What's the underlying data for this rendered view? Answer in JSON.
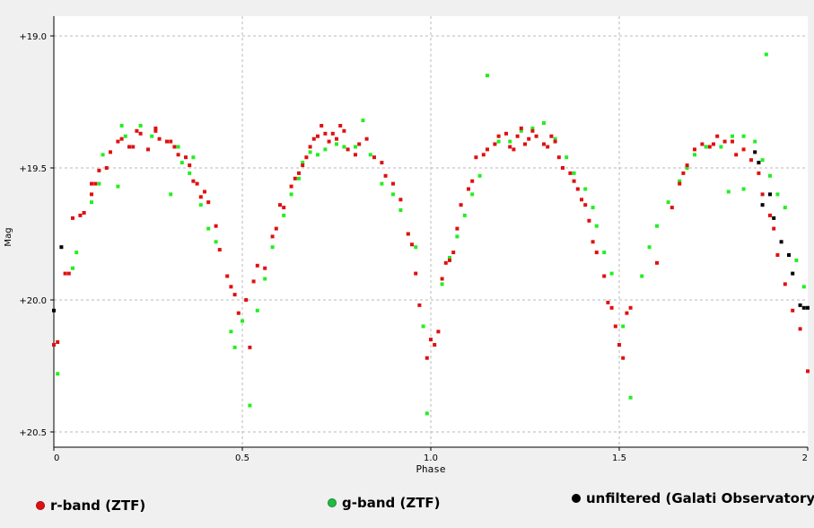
{
  "colors": {
    "r_band": "#e01010",
    "g_band": "#22ee22",
    "unfiltered": "#000000",
    "grid": "#b8b8b8",
    "plot_bg": "#ffffff",
    "window_bg": "#f0f0f0"
  },
  "chart_data": {
    "type": "scatter",
    "xlabel": "Phase",
    "ylabel": "Mag",
    "xlim": [
      0,
      2
    ],
    "ylim": [
      20.5,
      19.0
    ],
    "y_inverted": true,
    "grid": true,
    "x_ticks": [
      0,
      0.5,
      1.0,
      1.5,
      2
    ],
    "x_tick_labels": [
      "0",
      "0.5",
      "1.0",
      "1.5",
      "2"
    ],
    "y_ticks": [
      19.0,
      19.5,
      20.0,
      20.5
    ],
    "y_tick_labels": [
      "+19.0",
      "+19.5",
      "+20.0",
      "+20.5"
    ],
    "legend_position": "bottom",
    "series": [
      {
        "name": "r-band (ZTF)",
        "color_key": "r_band",
        "points": [
          [
            0.0,
            20.17
          ],
          [
            0.01,
            20.16
          ],
          [
            0.03,
            19.9
          ],
          [
            0.04,
            19.9
          ],
          [
            0.05,
            19.69
          ],
          [
            0.07,
            19.68
          ],
          [
            0.08,
            19.67
          ],
          [
            0.1,
            19.6
          ],
          [
            0.1,
            19.56
          ],
          [
            0.11,
            19.56
          ],
          [
            0.12,
            19.51
          ],
          [
            0.14,
            19.5
          ],
          [
            0.15,
            19.44
          ],
          [
            0.17,
            19.4
          ],
          [
            0.18,
            19.39
          ],
          [
            0.2,
            19.42
          ],
          [
            0.21,
            19.42
          ],
          [
            0.22,
            19.36
          ],
          [
            0.23,
            19.37
          ],
          [
            0.25,
            19.43
          ],
          [
            0.27,
            19.36
          ],
          [
            0.27,
            19.35
          ],
          [
            0.28,
            19.39
          ],
          [
            0.3,
            19.4
          ],
          [
            0.31,
            19.4
          ],
          [
            0.32,
            19.42
          ],
          [
            0.33,
            19.45
          ],
          [
            0.35,
            19.46
          ],
          [
            0.36,
            19.49
          ],
          [
            0.37,
            19.55
          ],
          [
            0.38,
            19.56
          ],
          [
            0.39,
            19.61
          ],
          [
            0.4,
            19.59
          ],
          [
            0.41,
            19.63
          ],
          [
            0.43,
            19.72
          ],
          [
            0.44,
            19.81
          ],
          [
            0.46,
            19.91
          ],
          [
            0.47,
            19.95
          ],
          [
            0.48,
            19.98
          ],
          [
            0.49,
            20.05
          ],
          [
            0.51,
            20.0
          ],
          [
            0.52,
            20.18
          ],
          [
            0.53,
            19.93
          ],
          [
            0.54,
            19.87
          ],
          [
            0.56,
            19.88
          ],
          [
            0.58,
            19.76
          ],
          [
            0.59,
            19.73
          ],
          [
            0.6,
            19.64
          ],
          [
            0.61,
            19.65
          ],
          [
            0.63,
            19.57
          ],
          [
            0.64,
            19.54
          ],
          [
            0.65,
            19.52
          ],
          [
            0.66,
            19.49
          ],
          [
            0.67,
            19.46
          ],
          [
            0.68,
            19.42
          ],
          [
            0.69,
            19.39
          ],
          [
            0.7,
            19.38
          ],
          [
            0.71,
            19.34
          ],
          [
            0.72,
            19.37
          ],
          [
            0.73,
            19.4
          ],
          [
            0.74,
            19.37
          ],
          [
            0.75,
            19.39
          ],
          [
            0.76,
            19.34
          ],
          [
            0.77,
            19.36
          ],
          [
            0.78,
            19.43
          ],
          [
            0.8,
            19.45
          ],
          [
            0.81,
            19.41
          ],
          [
            0.83,
            19.39
          ],
          [
            0.85,
            19.46
          ],
          [
            0.87,
            19.48
          ],
          [
            0.88,
            19.53
          ],
          [
            0.9,
            19.56
          ],
          [
            0.92,
            19.62
          ],
          [
            0.94,
            19.75
          ],
          [
            0.95,
            19.79
          ],
          [
            0.96,
            19.9
          ],
          [
            0.97,
            20.02
          ],
          [
            0.99,
            20.22
          ],
          [
            1.0,
            20.15
          ],
          [
            1.01,
            20.17
          ],
          [
            1.02,
            20.12
          ],
          [
            1.03,
            19.92
          ],
          [
            1.04,
            19.86
          ],
          [
            1.05,
            19.85
          ],
          [
            1.06,
            19.82
          ],
          [
            1.07,
            19.73
          ],
          [
            1.08,
            19.64
          ],
          [
            1.1,
            19.58
          ],
          [
            1.11,
            19.55
          ],
          [
            1.12,
            19.46
          ],
          [
            1.14,
            19.45
          ],
          [
            1.15,
            19.43
          ],
          [
            1.17,
            19.41
          ],
          [
            1.18,
            19.38
          ],
          [
            1.2,
            19.37
          ],
          [
            1.21,
            19.42
          ],
          [
            1.22,
            19.43
          ],
          [
            1.23,
            19.38
          ],
          [
            1.24,
            19.35
          ],
          [
            1.25,
            19.41
          ],
          [
            1.26,
            19.39
          ],
          [
            1.27,
            19.36
          ],
          [
            1.28,
            19.38
          ],
          [
            1.3,
            19.41
          ],
          [
            1.31,
            19.42
          ],
          [
            1.32,
            19.38
          ],
          [
            1.33,
            19.4
          ],
          [
            1.34,
            19.46
          ],
          [
            1.35,
            19.5
          ],
          [
            1.37,
            19.52
          ],
          [
            1.38,
            19.55
          ],
          [
            1.39,
            19.58
          ],
          [
            1.4,
            19.62
          ],
          [
            1.41,
            19.64
          ],
          [
            1.42,
            19.7
          ],
          [
            1.43,
            19.78
          ],
          [
            1.44,
            19.82
          ],
          [
            1.46,
            19.91
          ],
          [
            1.47,
            20.01
          ],
          [
            1.48,
            20.03
          ],
          [
            1.49,
            20.1
          ],
          [
            1.5,
            20.17
          ],
          [
            1.51,
            20.22
          ],
          [
            1.52,
            20.05
          ],
          [
            1.53,
            20.03
          ],
          [
            1.6,
            19.86
          ],
          [
            1.64,
            19.65
          ],
          [
            1.66,
            19.56
          ],
          [
            1.67,
            19.52
          ],
          [
            1.68,
            19.49
          ],
          [
            1.7,
            19.43
          ],
          [
            1.72,
            19.41
          ],
          [
            1.74,
            19.42
          ],
          [
            1.75,
            19.41
          ],
          [
            1.76,
            19.38
          ],
          [
            1.78,
            19.4
          ],
          [
            1.8,
            19.4
          ],
          [
            1.81,
            19.45
          ],
          [
            1.83,
            19.43
          ],
          [
            1.85,
            19.47
          ],
          [
            1.87,
            19.52
          ],
          [
            1.88,
            19.6
          ],
          [
            1.9,
            19.68
          ],
          [
            1.91,
            19.73
          ],
          [
            1.92,
            19.83
          ],
          [
            1.94,
            19.94
          ],
          [
            1.96,
            20.04
          ],
          [
            1.98,
            20.11
          ],
          [
            2.0,
            20.27
          ]
        ]
      },
      {
        "name": "g-band (ZTF)",
        "color_key": "g_band",
        "points": [
          [
            0.01,
            20.28
          ],
          [
            0.05,
            19.88
          ],
          [
            0.06,
            19.82
          ],
          [
            0.08,
            19.67
          ],
          [
            0.1,
            19.63
          ],
          [
            0.12,
            19.56
          ],
          [
            0.13,
            19.45
          ],
          [
            0.17,
            19.57
          ],
          [
            0.18,
            19.34
          ],
          [
            0.19,
            19.38
          ],
          [
            0.23,
            19.34
          ],
          [
            0.26,
            19.38
          ],
          [
            0.31,
            19.6
          ],
          [
            0.33,
            19.42
          ],
          [
            0.34,
            19.48
          ],
          [
            0.36,
            19.52
          ],
          [
            0.37,
            19.46
          ],
          [
            0.39,
            19.64
          ],
          [
            0.41,
            19.73
          ],
          [
            0.43,
            19.78
          ],
          [
            0.47,
            20.12
          ],
          [
            0.48,
            20.18
          ],
          [
            0.5,
            20.08
          ],
          [
            0.52,
            20.4
          ],
          [
            0.54,
            20.04
          ],
          [
            0.56,
            19.92
          ],
          [
            0.58,
            19.8
          ],
          [
            0.61,
            19.68
          ],
          [
            0.63,
            19.6
          ],
          [
            0.65,
            19.54
          ],
          [
            0.66,
            19.48
          ],
          [
            0.68,
            19.44
          ],
          [
            0.7,
            19.45
          ],
          [
            0.72,
            19.43
          ],
          [
            0.75,
            19.41
          ],
          [
            0.77,
            19.42
          ],
          [
            0.8,
            19.42
          ],
          [
            0.82,
            19.32
          ],
          [
            0.84,
            19.45
          ],
          [
            0.87,
            19.56
          ],
          [
            0.9,
            19.6
          ],
          [
            0.92,
            19.66
          ],
          [
            0.94,
            19.75
          ],
          [
            0.96,
            19.8
          ],
          [
            0.98,
            20.1
          ],
          [
            0.99,
            20.43
          ],
          [
            1.03,
            19.94
          ],
          [
            1.05,
            19.84
          ],
          [
            1.07,
            19.76
          ],
          [
            1.09,
            19.68
          ],
          [
            1.11,
            19.6
          ],
          [
            1.13,
            19.53
          ],
          [
            1.15,
            19.15
          ],
          [
            1.18,
            19.4
          ],
          [
            1.21,
            19.4
          ],
          [
            1.24,
            19.36
          ],
          [
            1.27,
            19.35
          ],
          [
            1.3,
            19.33
          ],
          [
            1.33,
            19.39
          ],
          [
            1.36,
            19.46
          ],
          [
            1.38,
            19.52
          ],
          [
            1.41,
            19.58
          ],
          [
            1.43,
            19.65
          ],
          [
            1.44,
            19.72
          ],
          [
            1.46,
            19.82
          ],
          [
            1.48,
            19.9
          ],
          [
            1.51,
            20.1
          ],
          [
            1.53,
            20.37
          ],
          [
            1.56,
            19.91
          ],
          [
            1.58,
            19.8
          ],
          [
            1.6,
            19.72
          ],
          [
            1.63,
            19.63
          ],
          [
            1.66,
            19.55
          ],
          [
            1.68,
            19.5
          ],
          [
            1.7,
            19.45
          ],
          [
            1.73,
            19.42
          ],
          [
            1.77,
            19.42
          ],
          [
            1.8,
            19.38
          ],
          [
            1.83,
            19.38
          ],
          [
            1.86,
            19.4
          ],
          [
            1.88,
            19.47
          ],
          [
            1.9,
            19.53
          ],
          [
            1.92,
            19.6
          ],
          [
            1.94,
            19.65
          ],
          [
            1.97,
            19.85
          ],
          [
            1.99,
            19.95
          ],
          [
            1.89,
            19.07
          ],
          [
            1.83,
            19.58
          ],
          [
            1.79,
            19.59
          ]
        ]
      },
      {
        "name": "unfiltered (Galati Observatory)",
        "color_key": "unfiltered",
        "points": [
          [
            0.0,
            20.04
          ],
          [
            0.02,
            19.8
          ],
          [
            1.86,
            19.44
          ],
          [
            1.87,
            19.48
          ],
          [
            1.9,
            19.6
          ],
          [
            1.91,
            19.69
          ],
          [
            1.93,
            19.78
          ],
          [
            1.95,
            19.83
          ],
          [
            1.96,
            19.9
          ],
          [
            1.98,
            20.02
          ],
          [
            1.99,
            20.03
          ],
          [
            2.0,
            20.03
          ],
          [
            1.88,
            19.64
          ]
        ]
      }
    ]
  }
}
